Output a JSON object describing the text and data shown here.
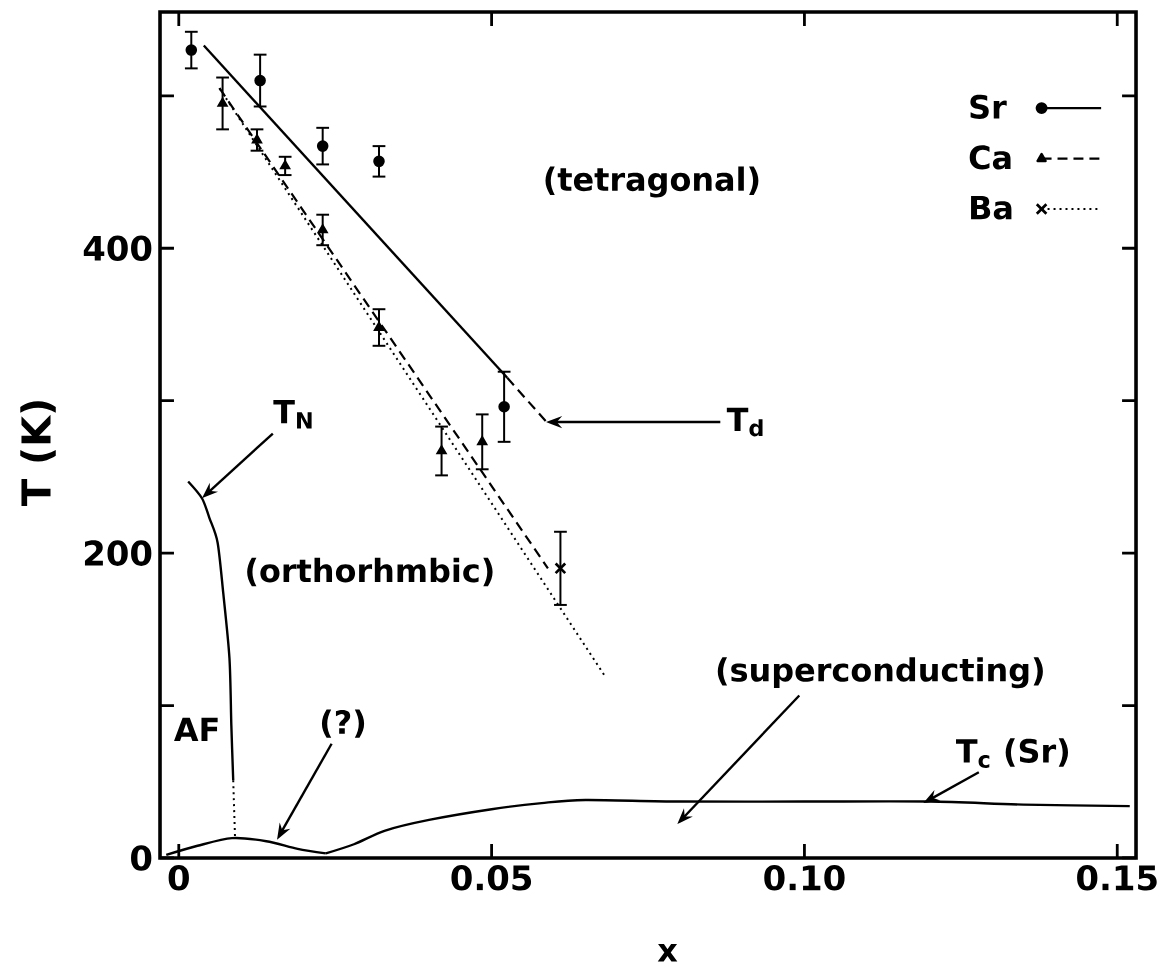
{
  "chart_data": {
    "type": "line",
    "xlabel": "x",
    "ylabel": "T (K)",
    "xlim": [
      -0.003,
      0.153
    ],
    "ylim": [
      0,
      555
    ],
    "xticks": [
      0,
      0.05,
      {
        "value": 0.1,
        "label": "0.10"
      },
      0.15
    ],
    "yticks": [
      0,
      {
        "value": 100,
        "label": null
      },
      200,
      {
        "value": 300,
        "label": null
      },
      400,
      {
        "value": 500,
        "label": null
      }
    ],
    "legend": "top right",
    "series": [
      {
        "name": "Sr",
        "type": "scatter",
        "color": "#000000",
        "marker": "circle",
        "line_style": "solid",
        "x": [
          0.002,
          0.013,
          0.023,
          0.032,
          0.052
        ],
        "values": [
          530,
          510,
          467,
          457,
          296
        ],
        "errors": [
          12,
          17,
          12,
          10,
          23
        ]
      },
      {
        "name": "Ca",
        "type": "scatter",
        "color": "#000000",
        "marker": "triangle",
        "line_style": "dashed",
        "x": [
          0.007,
          0.0125,
          0.017,
          0.023,
          0.032,
          0.042,
          0.0485
        ],
        "values": [
          495,
          471,
          454,
          412,
          348,
          267,
          273
        ],
        "errors": [
          17,
          7,
          6,
          10,
          12,
          16,
          18
        ]
      },
      {
        "name": "Ba",
        "type": "scatter",
        "color": "#000000",
        "marker": "cross",
        "line_style": "dotted",
        "x": [
          0.061
        ],
        "values": [
          190
        ],
        "errors": [
          24
        ]
      },
      {
        "color": "#000000",
        "line_style": "solid",
        "x": [
          0.004,
          0.0525
        ],
        "values": [
          533,
          315
        ]
      },
      {
        "color": "#000000",
        "line_style": "dashed",
        "x": [
          0.0525,
          0.059
        ],
        "values": [
          315,
          285
        ]
      },
      {
        "color": "#000000",
        "line_style": "dashed",
        "x": [
          0.0065,
          0.059
        ],
        "values": [
          505,
          190
        ]
      },
      {
        "color": "#000000",
        "line_style": "dotted",
        "x": [
          0.0065,
          0.068
        ],
        "values": [
          505,
          120
        ]
      },
      {
        "color": "#000000",
        "line_style": "solid",
        "x": [
          0.0015,
          0.0037,
          0.0049,
          0.0062,
          0.0071,
          0.0081,
          0.0084,
          0.0087
        ],
        "values": [
          247,
          236,
          223,
          207,
          174,
          131,
          87,
          51
        ]
      },
      {
        "color": "#000000",
        "line_style": "dotted",
        "x": [
          0.0087,
          0.009
        ],
        "values": [
          51,
          12
        ]
      },
      {
        "color": "#000000",
        "line_style": "solid",
        "x": [
          -0.002,
          0.003,
          0.0085,
          0.014,
          0.019,
          0.0235
        ],
        "values": [
          2,
          8,
          13,
          11,
          6,
          3
        ]
      },
      {
        "color": "#000000",
        "line_style": "solid",
        "x": [
          0.0235,
          0.028,
          0.033,
          0.04,
          0.05,
          0.058,
          0.065,
          0.08,
          0.1,
          0.12,
          0.135,
          0.152
        ],
        "values": [
          3,
          9,
          18,
          25,
          32,
          36,
          38,
          37,
          37,
          37,
          35,
          34
        ]
      }
    ],
    "annotations": [
      "(tetragonal)",
      "(orthorhmbic)",
      "AF",
      {
        "text": "T$_{N}$",
        "x": 0.0037,
        "y": 236
      },
      {
        "text": "T$_{d}$",
        "x": 0.0587,
        "y": 286
      },
      {
        "text": "(?)",
        "x": 0.0157,
        "y": 12
      },
      "(superconducting)",
      {
        "text": "T$_{c}$ (Sr)",
        "x": 0.119,
        "y": 36
      }
    ]
  }
}
